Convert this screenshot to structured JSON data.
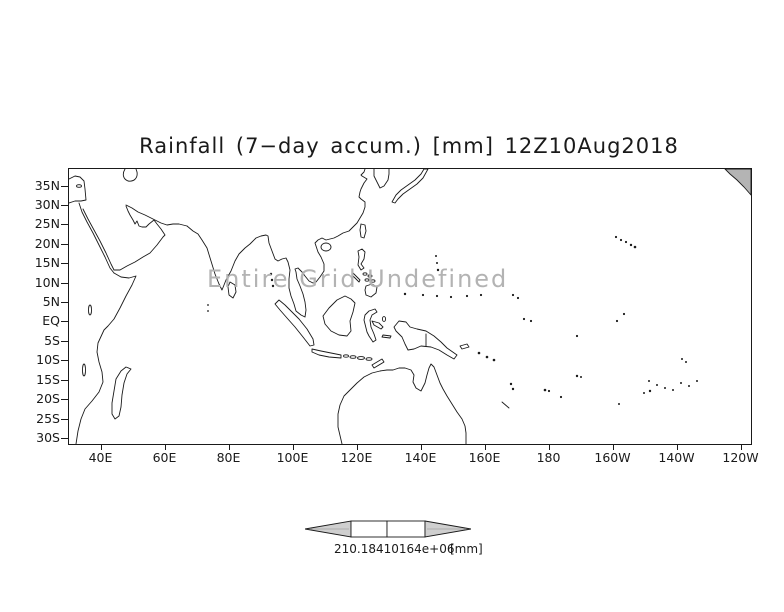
{
  "title": "Rainfall (7−day accum.) [mm] 12Z10Aug2018",
  "map": {
    "annotation": "Entire Grid Undefined"
  },
  "axes": {
    "lat_labels": [
      "35N",
      "30N",
      "25N",
      "20N",
      "15N",
      "10N",
      "5N",
      "EQ",
      "5S",
      "10S",
      "15S",
      "20S",
      "25S",
      "30S"
    ],
    "lon_labels": [
      "40E",
      "60E",
      "80E",
      "100E",
      "120E",
      "140E",
      "160E",
      "180",
      "160W",
      "140W",
      "120W"
    ]
  },
  "legend": {
    "value": "210.18410164e+06",
    "units": "[mm]"
  },
  "colors": {
    "background": "#ffffff",
    "coastline": "#1a1a1a",
    "annotation_gray": "#b3b3b3",
    "legend_arrow_fill": "#cfcfcf"
  },
  "chart_data": {
    "type": "heatmap",
    "title": "Rainfall (7−day accum.) [mm] 12Z10Aug2018",
    "variable": "Rainfall (7-day accum.)",
    "units": "mm",
    "valid_time": "12Z10Aug2018",
    "x_axis": {
      "label": "longitude",
      "ticks": [
        "40E",
        "60E",
        "80E",
        "100E",
        "120E",
        "140E",
        "160E",
        "180",
        "160W",
        "140W",
        "120W"
      ]
    },
    "y_axis": {
      "label": "latitude",
      "ticks": [
        "35N",
        "30N",
        "25N",
        "20N",
        "15N",
        "10N",
        "5N",
        "EQ",
        "5S",
        "10S",
        "15S",
        "20S",
        "25S",
        "30S"
      ]
    },
    "values": null,
    "status": "Entire Grid Undefined",
    "colorbar": {
      "text": "210.18410164e+06",
      "units": "[mm]"
    },
    "grid": false,
    "basemap": "coastlines"
  }
}
